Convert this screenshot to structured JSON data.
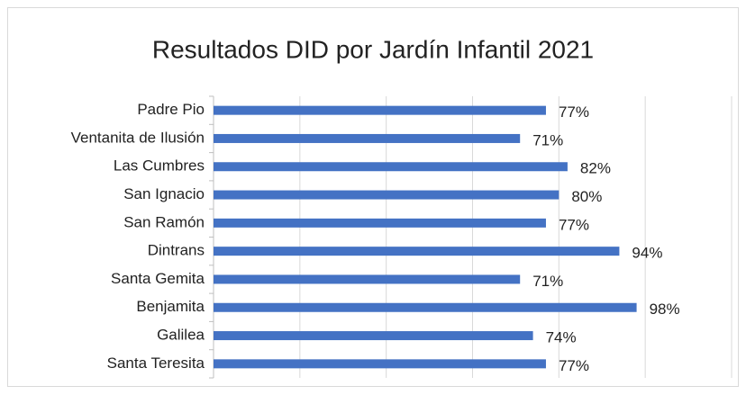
{
  "chart_data": {
    "type": "barh",
    "title": "Resultados DID por Jardín Infantil 2021",
    "categories": [
      "Padre Pio",
      "Ventanita de Ilusión",
      "Las Cumbres",
      "San Ignacio",
      "San Ramón",
      "Dintrans",
      "Santa Gemita",
      "Benjamita",
      "Galilea",
      "Santa Teresita"
    ],
    "values": [
      77,
      71,
      82,
      80,
      77,
      94,
      71,
      98,
      74,
      77
    ],
    "value_labels": [
      "77%",
      "71%",
      "82%",
      "80%",
      "77%",
      "94%",
      "71%",
      "98%",
      "74%",
      "77%"
    ],
    "color": "#4472c4",
    "xlim": [
      0,
      120
    ],
    "xticks": [
      0,
      20,
      40,
      60,
      80,
      100,
      120
    ],
    "grid": true
  }
}
